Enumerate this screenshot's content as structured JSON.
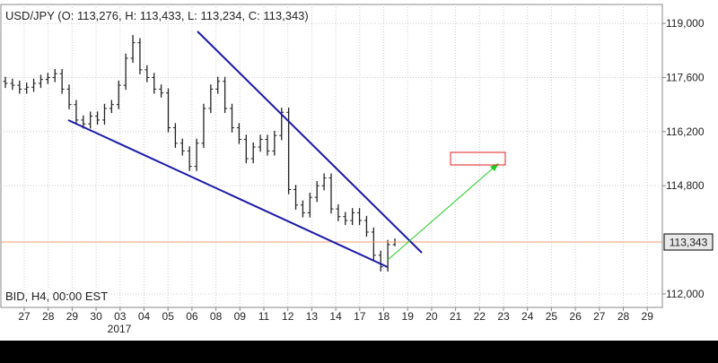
{
  "chart_data": {
    "type": "ohlc",
    "title": "USD/JPY (O: 113,276, H: 113,433, L: 113,234, C: 113,343)",
    "subtitle": "BID, H4, 00:00 EST",
    "x_labels": [
      "27",
      "28",
      "29",
      "30",
      "03",
      "04",
      "05",
      "06",
      "08",
      "09",
      "11",
      "12",
      "13",
      "14",
      "17",
      "18",
      "19",
      "20",
      "21",
      "22",
      "23",
      "24",
      "25",
      "26",
      "27",
      "28",
      "29"
    ],
    "year_label": "2017",
    "open": [
      117500,
      117450,
      117400,
      117300,
      117350,
      117450,
      117550,
      117600,
      117700,
      117300,
      116900,
      116500,
      116400,
      116600,
      116500,
      116800,
      116900,
      117400,
      118100,
      118500,
      117800,
      117600,
      117300,
      117200,
      116300,
      115900,
      115700,
      115300,
      115900,
      116800,
      117300,
      117500,
      116800,
      116300,
      116000,
      115500,
      115800,
      116000,
      115700,
      116100,
      116700,
      114700,
      114300,
      114100,
      114500,
      114800,
      115000,
      114200,
      114000,
      113900,
      114100,
      113900,
      113600,
      113000,
      112700,
      113276
    ],
    "high": [
      117620,
      117570,
      117520,
      117470,
      117570,
      117670,
      117720,
      117820,
      117820,
      117420,
      117020,
      116620,
      116720,
      116720,
      116920,
      117020,
      117520,
      118220,
      118700,
      118620,
      117920,
      117720,
      117420,
      117320,
      116420,
      116020,
      115820,
      116020,
      116920,
      117420,
      117620,
      117620,
      116920,
      116420,
      116120,
      115920,
      116120,
      116120,
      116220,
      116820,
      116820,
      114820,
      114420,
      114620,
      114920,
      115120,
      115120,
      114320,
      114120,
      114220,
      114220,
      114020,
      113720,
      113120,
      113396,
      113433
    ],
    "low": [
      117330,
      117280,
      117180,
      117180,
      117230,
      117330,
      117430,
      117480,
      117180,
      116780,
      116380,
      116280,
      116280,
      116380,
      116380,
      116680,
      116780,
      117280,
      117980,
      117680,
      117480,
      117180,
      117080,
      116180,
      115780,
      115580,
      115180,
      115180,
      115780,
      116680,
      117180,
      116680,
      116180,
      115880,
      115380,
      115380,
      115680,
      115580,
      115580,
      115980,
      114580,
      114180,
      113980,
      113980,
      114380,
      114680,
      114080,
      113880,
      113780,
      113780,
      113780,
      113480,
      112880,
      112580,
      112580,
      113234
    ],
    "close": [
      117450,
      117400,
      117300,
      117350,
      117450,
      117550,
      117600,
      117700,
      117300,
      116900,
      116500,
      116400,
      116600,
      116500,
      116800,
      116900,
      117400,
      118100,
      118500,
      117800,
      117600,
      117300,
      117200,
      116300,
      115900,
      115700,
      115300,
      115900,
      116800,
      117300,
      117500,
      116800,
      116300,
      116000,
      115500,
      115800,
      116000,
      115700,
      116100,
      116700,
      114700,
      114300,
      114100,
      114500,
      114800,
      115000,
      114200,
      114000,
      113900,
      114100,
      113900,
      113600,
      113000,
      112700,
      113276,
      113343
    ],
    "color": "#222222",
    "price_label": "113,343",
    "price_line_color": "#f0a070",
    "ylim": [
      111650,
      119490
    ],
    "yticks": [
      {
        "value": 112000,
        "label": "112,000"
      },
      {
        "value": 114800,
        "label": "114,800"
      },
      {
        "value": 116200,
        "label": "116,200"
      },
      {
        "value": 117600,
        "label": "117,600"
      },
      {
        "value": 119000,
        "label": "119,000"
      }
    ],
    "grid": true
  }
}
